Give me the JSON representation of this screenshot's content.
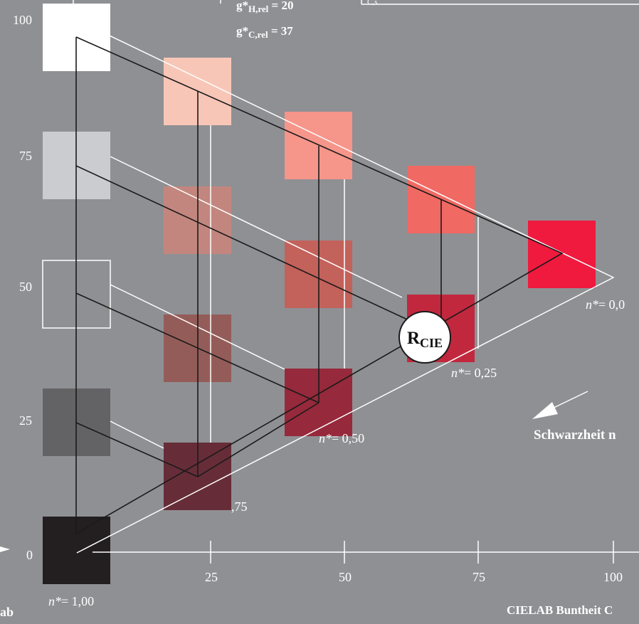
{
  "header": {
    "g_h": {
      "prefix": "g*",
      "sub": "H,rel",
      "suffix": " = 20"
    },
    "g_c": {
      "prefix": "g*",
      "sub": "C,rel",
      "suffix": " = 37"
    },
    "box_text": "C,s"
  },
  "y_axis": {
    "ticks": [
      "100",
      "75",
      "50",
      "25",
      "0"
    ]
  },
  "x_axis": {
    "ticks": [
      "25",
      "50",
      "75",
      "100"
    ],
    "title": "CIELAB Buntheit C"
  },
  "corner_label": "ab",
  "n_labels": {
    "n0": "= 0,0",
    "n25": "= 0,25",
    "n50": "= 0,50",
    "n75": ",75",
    "n100": "= 1,00"
  },
  "n_prefix": "n*",
  "schwarzheit": "Schwarzheit n",
  "rcie": {
    "main": "R",
    "sub": "CIE"
  },
  "colors": {
    "background": "#8f9094",
    "patches": [
      "#ffffff",
      "#f8c6b7",
      "#f6958a",
      "#f06962",
      "#ef1a3e",
      "#cbcccf",
      "#c2867e",
      "#c3615b",
      "#c1283e",
      "#ffffff",
      "#945c58",
      "#96293b",
      "#636365",
      "#662d38",
      "#231f20"
    ]
  }
}
